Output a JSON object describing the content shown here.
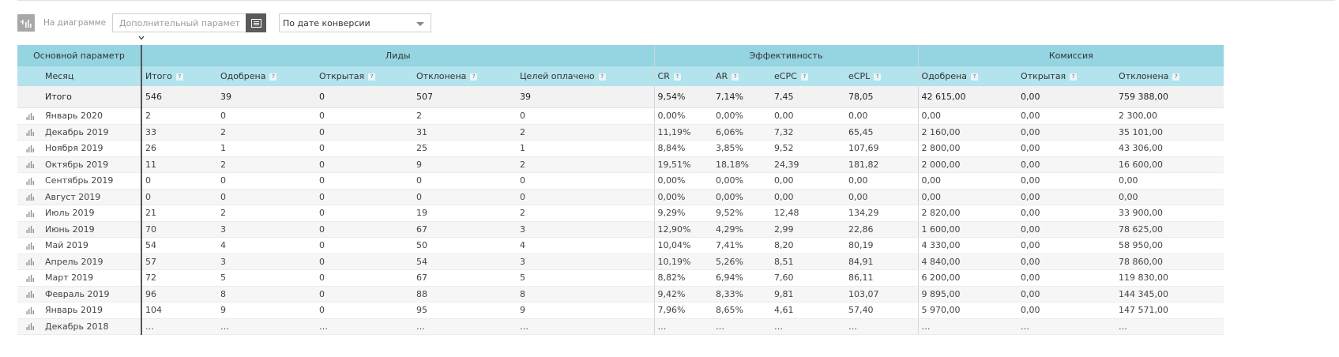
{
  "toolbar": {
    "chart_label": "На диаграмме",
    "param_placeholder": "Дополнительный параметр",
    "sort_value": "По дате конверсии"
  },
  "groups": {
    "main": "Основной параметр",
    "leads": "Лиды",
    "efficiency": "Эффективность",
    "commission": "Комиссия"
  },
  "columns": {
    "month": "Месяц",
    "total": "Итого",
    "approved": "Одобрена",
    "open": "Открытая",
    "rejected": "Отклонена",
    "goals_paid": "Целей оплачено",
    "cr": "CR",
    "ar": "AR",
    "ecpc": "eCPC",
    "ecpl": "eCPL",
    "c_approved": "Одобрена",
    "c_open": "Открытая",
    "c_rejected": "Отклонена",
    "help": "?"
  },
  "total_row": [
    "Итого",
    "546",
    "39",
    "0",
    "507",
    "39",
    "9,54%",
    "7,14%",
    "7,45",
    "78,05",
    "42 615,00",
    "0,00",
    "759 388,00"
  ],
  "rows": [
    [
      "Январь 2020",
      "2",
      "0",
      "0",
      "2",
      "0",
      "0,00%",
      "0,00%",
      "0,00",
      "0,00",
      "0,00",
      "0,00",
      "2 300,00"
    ],
    [
      "Декабрь 2019",
      "33",
      "2",
      "0",
      "31",
      "2",
      "11,19%",
      "6,06%",
      "7,32",
      "65,45",
      "2 160,00",
      "0,00",
      "35 101,00"
    ],
    [
      "Ноября 2019",
      "26",
      "1",
      "0",
      "25",
      "1",
      "8,84%",
      "3,85%",
      "9,52",
      "107,69",
      "2 800,00",
      "0,00",
      "43 306,00"
    ],
    [
      "Октябрь 2019",
      "11",
      "2",
      "0",
      "9",
      "2",
      "19,51%",
      "18,18%",
      "24,39",
      "181,82",
      "2 000,00",
      "0,00",
      "16 600,00"
    ],
    [
      "Сентябрь 2019",
      "0",
      "0",
      "0",
      "0",
      "0",
      "0,00%",
      "0,00%",
      "0,00",
      "0,00",
      "0,00",
      "0,00",
      "0,00"
    ],
    [
      "Август 2019",
      "0",
      "0",
      "0",
      "0",
      "0",
      "0,00%",
      "0,00%",
      "0,00",
      "0,00",
      "0,00",
      "0,00",
      "0,00"
    ],
    [
      "Июль 2019",
      "21",
      "2",
      "0",
      "19",
      "2",
      "9,29%",
      "9,52%",
      "12,48",
      "134,29",
      "2 820,00",
      "0,00",
      "33 900,00"
    ],
    [
      "Июнь 2019",
      "70",
      "3",
      "0",
      "67",
      "3",
      "12,90%",
      "4,29%",
      "2,99",
      "22,86",
      "1 600,00",
      "0,00",
      "78 625,00"
    ],
    [
      "Май 2019",
      "54",
      "4",
      "0",
      "50",
      "4",
      "10,04%",
      "7,41%",
      "8,20",
      "80,19",
      "4 330,00",
      "0,00",
      "58 950,00"
    ],
    [
      "Апрель 2019",
      "57",
      "3",
      "0",
      "54",
      "3",
      "10,19%",
      "5,26%",
      "8,51",
      "84,91",
      "4 840,00",
      "0,00",
      "78 860,00"
    ],
    [
      "Март 2019",
      "72",
      "5",
      "0",
      "67",
      "5",
      "8,82%",
      "6,94%",
      "7,60",
      "86,11",
      "6 200,00",
      "0,00",
      "119 830,00"
    ],
    [
      "Февраль 2019",
      "96",
      "8",
      "0",
      "88",
      "8",
      "9,42%",
      "8,33%",
      "9,81",
      "103,07",
      "9 895,00",
      "0,00",
      "144 345,00"
    ],
    [
      "Январь 2019",
      "104",
      "9",
      "0",
      "95",
      "9",
      "7,96%",
      "8,65%",
      "4,61",
      "57,40",
      "5 970,00",
      "0,00",
      "147 571,00"
    ],
    [
      "Декабрь 2018",
      "…",
      "…",
      "…",
      "…",
      "…",
      "…",
      "…",
      "…",
      "…",
      "…",
      "…",
      "…"
    ]
  ],
  "icons": {
    "toggle": "bar-chart-toggle-icon",
    "param_button": "add-parameter-icon",
    "row": "bar-chart-icon"
  },
  "colors": {
    "header_group": "#95d4e1",
    "header_columns": "#b3e3ec"
  }
}
